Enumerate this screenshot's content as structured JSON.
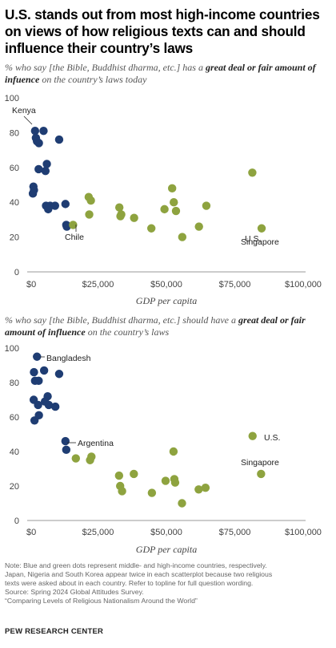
{
  "title": "U.S. stands out from most high-income countries on views of how religious texts can and should influence their country’s laws",
  "colors": {
    "middle_income": "#1f3d73",
    "high_income": "#8ea33f",
    "axis": "#999999"
  },
  "chart_data": [
    {
      "type": "scatter",
      "subtitle_parts": [
        "% who say [the Bible, Buddhist dharma, etc.] has a ",
        "great deal or fair amount of infuence",
        " on the country’s laws today"
      ],
      "xlabel": "GDP per capita",
      "ylabel": "",
      "xlim": [
        0,
        100000
      ],
      "ylim": [
        0,
        100
      ],
      "x_ticks": [
        "$0",
        "$25,000",
        "$50,000",
        "$75,000",
        "$100,000"
      ],
      "y_ticks": [
        "0",
        "20",
        "40",
        "60",
        "80",
        "100"
      ],
      "grid": false,
      "series": [
        {
          "points": [
            [
              2000,
              81
            ],
            [
              2300,
              77
            ],
            [
              2700,
              75
            ],
            [
              3400,
              74
            ],
            [
              5100,
              81
            ],
            [
              3300,
              59
            ],
            [
              5800,
              58
            ],
            [
              6300,
              62
            ],
            [
              1400,
              49
            ],
            [
              1600,
              47
            ],
            [
              1200,
              45
            ],
            [
              6000,
              38
            ],
            [
              7500,
              38
            ],
            [
              6800,
              36
            ],
            [
              9300,
              38
            ],
            [
              13100,
              39
            ],
            [
              13400,
              27
            ],
            [
              13600,
              26
            ],
            [
              10800,
              76
            ]
          ]
        },
        {
          "points": [
            [
              15900,
              27
            ],
            [
              21600,
              43
            ],
            [
              22400,
              41
            ],
            [
              21800,
              33
            ],
            [
              32800,
              37
            ],
            [
              33500,
              33
            ],
            [
              33200,
              32
            ],
            [
              38200,
              31
            ],
            [
              44500,
              25
            ],
            [
              49300,
              36
            ],
            [
              52100,
              48
            ],
            [
              52700,
              40
            ],
            [
              53500,
              35
            ],
            [
              55800,
              20
            ],
            [
              61900,
              26
            ],
            [
              64600,
              38
            ],
            [
              81400,
              57
            ],
            [
              84800,
              25
            ]
          ]
        }
      ],
      "annotations": [
        "Kenya",
        "U.S.",
        "Chile",
        "Singapore"
      ]
    },
    {
      "type": "scatter",
      "subtitle_parts": [
        "% who say [the Bible, Buddhist dharma, etc.] should have a ",
        "great deal or fair amount of influence",
        " on the country’s laws"
      ],
      "xlabel": "GDP per capita",
      "ylabel": "",
      "xlim": [
        0,
        100000
      ],
      "ylim": [
        0,
        100
      ],
      "x_ticks": [
        "$0",
        "$25,000",
        "$50,000",
        "$75,000",
        "$100,000"
      ],
      "y_ticks": [
        "0",
        "20",
        "40",
        "60",
        "80",
        "100"
      ],
      "grid": false,
      "series": [
        {
          "points": [
            [
              2700,
              95
            ],
            [
              1600,
              86
            ],
            [
              5300,
              87
            ],
            [
              2000,
              81
            ],
            [
              3300,
              81
            ],
            [
              1500,
              70
            ],
            [
              3100,
              67
            ],
            [
              6600,
              72
            ],
            [
              5600,
              69
            ],
            [
              7000,
              67
            ],
            [
              9400,
              66
            ],
            [
              1800,
              58
            ],
            [
              3400,
              61
            ],
            [
              10800,
              85
            ],
            [
              13100,
              46
            ],
            [
              13400,
              41
            ]
          ]
        },
        {
          "points": [
            [
              16900,
              36
            ],
            [
              22600,
              37
            ],
            [
              22100,
              35
            ],
            [
              32700,
              26
            ],
            [
              33100,
              20
            ],
            [
              33800,
              17
            ],
            [
              38100,
              27
            ],
            [
              44700,
              16
            ],
            [
              49700,
              23
            ],
            [
              52600,
              40
            ],
            [
              52900,
              24
            ],
            [
              53200,
              22
            ],
            [
              55700,
              10
            ],
            [
              61800,
              18
            ],
            [
              64300,
              19
            ],
            [
              81500,
              49
            ],
            [
              84600,
              27
            ]
          ]
        }
      ],
      "annotations": [
        "Bangladesh",
        "U.S.",
        "Argentina",
        "Singapore"
      ]
    }
  ],
  "notes": [
    "Note: Blue and green dots represent middle- and high-income countries, respectively.",
    "Japan, Nigeria and South Korea appear twice in each scatterplot because two religious",
    "texts were asked about in each country. Refer to topline for full question wording.",
    "Source: Spring 2024 Global Attitudes Survey.",
    "“Comparing Levels of Religious Nationalism Around the World”"
  ],
  "org": "PEW RESEARCH CENTER"
}
